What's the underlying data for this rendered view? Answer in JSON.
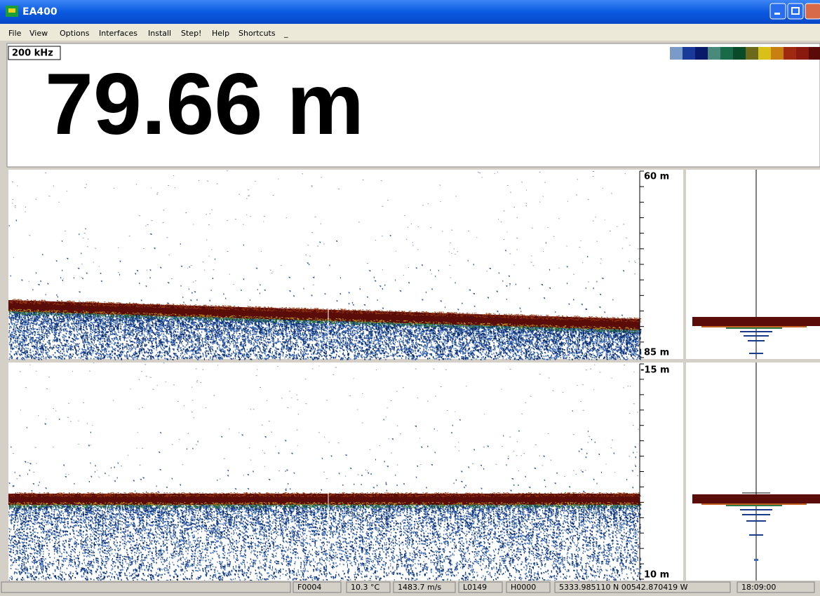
{
  "window": {
    "title": "EA400"
  },
  "menu": [
    "File",
    "View",
    "Options",
    "Interfaces",
    "Install",
    "Step!",
    "Help",
    "Shortcuts",
    "_"
  ],
  "depth_panel": {
    "frequency": "200 kHz",
    "depth": "79.66 m"
  },
  "echogram_upper": {
    "top_label": "60 m",
    "bottom_label": "85 m"
  },
  "echogram_lower": {
    "top_label": "-15 m",
    "bottom_label": "10 m"
  },
  "status_bar": [
    "F0004",
    "10.3 °C",
    "1483.7 m/s",
    "L0149",
    "H0000",
    "5333.985110 N 00542.870419 W",
    "18:09:00"
  ]
}
